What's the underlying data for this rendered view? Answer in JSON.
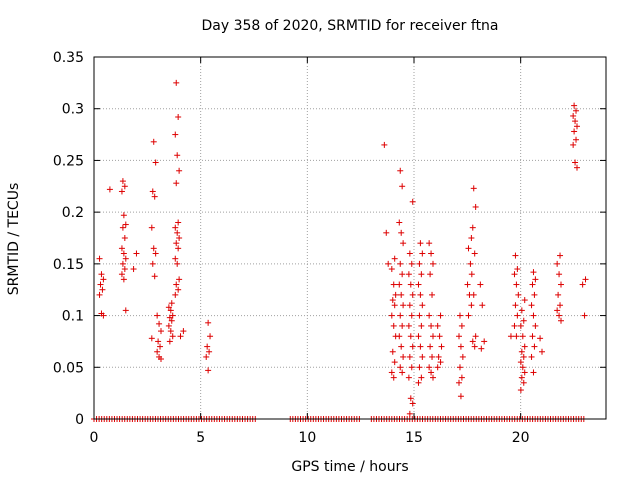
{
  "chart_data": {
    "type": "scatter",
    "title": "Day 358 of 2020, SRMTID for receiver ftna",
    "xlabel": "GPS time / hours",
    "ylabel": "SRMTID / TECUs",
    "xlim": [
      0,
      24
    ],
    "ylim": [
      0,
      0.35
    ],
    "xticks": [
      0,
      5,
      10,
      15,
      20
    ],
    "yticks": [
      0,
      0.05,
      0.1,
      0.15,
      0.2,
      0.25,
      0.3,
      0.35
    ],
    "grid": true,
    "marker_color": "#dd0000",
    "grid_color": "#a0a0a0",
    "marker": "plus",
    "series": [
      {
        "name": "SRMTID",
        "clusters": [
          {
            "x": 0.35,
            "y": [
              0.155,
              0.14,
              0.135,
              0.13,
              0.125,
              0.12,
              0.102,
              0.1
            ]
          },
          {
            "x": 0.7,
            "y": [
              0.222
            ]
          },
          {
            "x": 1.4,
            "y": [
              0.23,
              0.225,
              0.22,
              0.197,
              0.188,
              0.185,
              0.175,
              0.165,
              0.16,
              0.155,
              0.15,
              0.145,
              0.14,
              0.135,
              0.105
            ]
          },
          {
            "x": 1.9,
            "y": [
              0.16,
              0.145
            ]
          },
          {
            "x": 2.8,
            "y": [
              0.268,
              0.248,
              0.22,
              0.215,
              0.185,
              0.165,
              0.16,
              0.15,
              0.138,
              0.078
            ]
          },
          {
            "x": 3.05,
            "y": [
              0.1,
              0.092,
              0.085,
              0.075,
              0.07,
              0.065,
              0.06,
              0.058
            ]
          },
          {
            "x": 3.6,
            "y": [
              0.112,
              0.108,
              0.105,
              0.1,
              0.098,
              0.095,
              0.09,
              0.085,
              0.08,
              0.075
            ]
          },
          {
            "x": 3.9,
            "y": [
              0.325,
              0.292,
              0.275,
              0.255,
              0.24,
              0.228,
              0.19,
              0.185,
              0.18,
              0.175,
              0.17,
              0.165,
              0.155,
              0.15,
              0.135,
              0.13,
              0.125,
              0.12
            ]
          },
          {
            "x": 4.1,
            "y": [
              0.085,
              0.08
            ]
          },
          {
            "x": 5.35,
            "y": [
              0.093,
              0.08,
              0.07,
              0.065,
              0.06,
              0.047
            ]
          },
          {
            "x": 13.7,
            "y": [
              0.265,
              0.18,
              0.15
            ]
          },
          {
            "x": 14.05,
            "y": [
              0.155,
              0.145,
              0.13,
              0.12,
              0.115,
              0.11,
              0.1,
              0.09,
              0.08,
              0.065,
              0.055,
              0.045,
              0.04
            ]
          },
          {
            "x": 14.4,
            "y": [
              0.24,
              0.225,
              0.19,
              0.18,
              0.17,
              0.15,
              0.14,
              0.13,
              0.12,
              0.11,
              0.1,
              0.09,
              0.08,
              0.07,
              0.06,
              0.05,
              0.045
            ]
          },
          {
            "x": 14.85,
            "y": [
              0.21,
              0.16,
              0.15,
              0.14,
              0.13,
              0.12,
              0.11,
              0.1,
              0.09,
              0.08,
              0.07,
              0.06,
              0.05,
              0.04,
              0.02,
              0.015,
              0.005
            ]
          },
          {
            "x": 15.3,
            "y": [
              0.17,
              0.16,
              0.15,
              0.14,
              0.13,
              0.12,
              0.11,
              0.1,
              0.09,
              0.08,
              0.07,
              0.06,
              0.05,
              0.04,
              0.035
            ]
          },
          {
            "x": 15.8,
            "y": [
              0.17,
              0.16,
              0.15,
              0.14,
              0.12,
              0.1,
              0.09,
              0.08,
              0.07,
              0.06,
              0.05,
              0.045,
              0.04
            ]
          },
          {
            "x": 16.2,
            "y": [
              0.1,
              0.09,
              0.08,
              0.07,
              0.06,
              0.055,
              0.05
            ]
          },
          {
            "x": 17.2,
            "y": [
              0.1,
              0.09,
              0.08,
              0.07,
              0.06,
              0.05,
              0.04,
              0.035,
              0.022
            ]
          },
          {
            "x": 17.6,
            "y": [
              0.175,
              0.165,
              0.15,
              0.13,
              0.12,
              0.11,
              0.1
            ]
          },
          {
            "x": 17.8,
            "y": [
              0.223,
              0.205,
              0.185,
              0.16,
              0.14,
              0.12,
              0.08,
              0.075,
              0.07
            ]
          },
          {
            "x": 18.2,
            "y": [
              0.13,
              0.11,
              0.075,
              0.068
            ]
          },
          {
            "x": 19.5,
            "y": [
              0.08
            ]
          },
          {
            "x": 19.8,
            "y": [
              0.158,
              0.145,
              0.14,
              0.13,
              0.12,
              0.11,
              0.1,
              0.09,
              0.08
            ]
          },
          {
            "x": 20.1,
            "y": [
              0.115,
              0.105,
              0.095,
              0.09,
              0.08,
              0.07,
              0.065,
              0.06,
              0.055,
              0.05,
              0.045,
              0.04,
              0.035,
              0.028
            ]
          },
          {
            "x": 20.6,
            "y": [
              0.142,
              0.135,
              0.13,
              0.12,
              0.11,
              0.1,
              0.09,
              0.08,
              0.07,
              0.06,
              0.045
            ]
          },
          {
            "x": 21.0,
            "y": [
              0.078,
              0.065
            ]
          },
          {
            "x": 21.8,
            "y": [
              0.158,
              0.15,
              0.14,
              0.13,
              0.12,
              0.11,
              0.105,
              0.1,
              0.095
            ]
          },
          {
            "x": 22.55,
            "y": [
              0.303,
              0.298,
              0.293,
              0.288,
              0.283,
              0.278,
              0.27,
              0.265,
              0.248,
              0.243
            ]
          },
          {
            "x": 22.95,
            "y": [
              0.135,
              0.13,
              0.1
            ]
          }
        ],
        "zero_ranges": [
          [
            0.0,
            7.6
          ],
          [
            9.2,
            12.5
          ],
          [
            13.0,
            23.0
          ]
        ]
      }
    ]
  }
}
